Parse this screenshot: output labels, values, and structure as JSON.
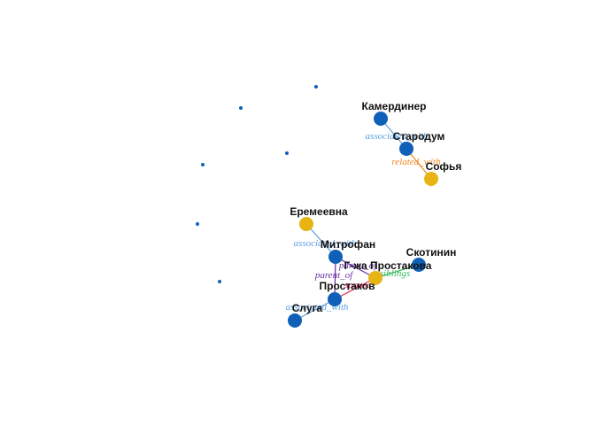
{
  "colors": {
    "person_node": "#1060b8",
    "female_node": "#e8b414",
    "associated_with": "#5b9fe0",
    "related_with": "#f08a24",
    "parent_of": "#6a2ea0",
    "spouse": "#d8335a",
    "siblings": "#3cb860"
  },
  "nodes": [
    {
      "id": "kamerdiner",
      "label": "Камердинер",
      "kind": "person"
    },
    {
      "id": "starodum",
      "label": "Стародум",
      "kind": "person"
    },
    {
      "id": "sofya",
      "label": "Софья",
      "kind": "female"
    },
    {
      "id": "eremeevna",
      "label": "Еремеевна",
      "kind": "female"
    },
    {
      "id": "mitrofan",
      "label": "Митрофан",
      "kind": "person"
    },
    {
      "id": "skotinin",
      "label": "Скотинин",
      "kind": "person"
    },
    {
      "id": "prostakova",
      "label": "Г-жа Простакова",
      "kind": "female"
    },
    {
      "id": "prostakov",
      "label": "Простаков",
      "kind": "person"
    },
    {
      "id": "sluga",
      "label": "Слуга",
      "kind": "person"
    },
    {
      "id": "iso1",
      "label": "",
      "kind": "isolated"
    },
    {
      "id": "iso2",
      "label": "",
      "kind": "isolated"
    },
    {
      "id": "iso3",
      "label": "",
      "kind": "isolated"
    },
    {
      "id": "iso4",
      "label": "",
      "kind": "isolated"
    },
    {
      "id": "iso5",
      "label": "",
      "kind": "isolated"
    },
    {
      "id": "iso6",
      "label": "",
      "kind": "isolated"
    }
  ],
  "edges": [
    {
      "source": "kamerdiner",
      "target": "starodum",
      "label": "associated_with",
      "type": "associated_with"
    },
    {
      "source": "starodum",
      "target": "sofya",
      "label": "related_with",
      "type": "related_with"
    },
    {
      "source": "eremeevna",
      "target": "mitrofan",
      "label": "associated_with",
      "type": "associated_with"
    },
    {
      "source": "mitrofan",
      "target": "prostakova",
      "label": "parent_of",
      "type": "parent_of"
    },
    {
      "source": "prostakov",
      "target": "mitrofan",
      "label": "parent_of",
      "type": "parent_of"
    },
    {
      "source": "prostakova",
      "target": "prostakov",
      "label": "spouse",
      "type": "spouse"
    },
    {
      "source": "prostakova",
      "target": "skotinin",
      "label": "siblings",
      "type": "siblings"
    },
    {
      "source": "prostakov",
      "target": "sluga",
      "label": "associated_with",
      "type": "associated_with"
    }
  ]
}
